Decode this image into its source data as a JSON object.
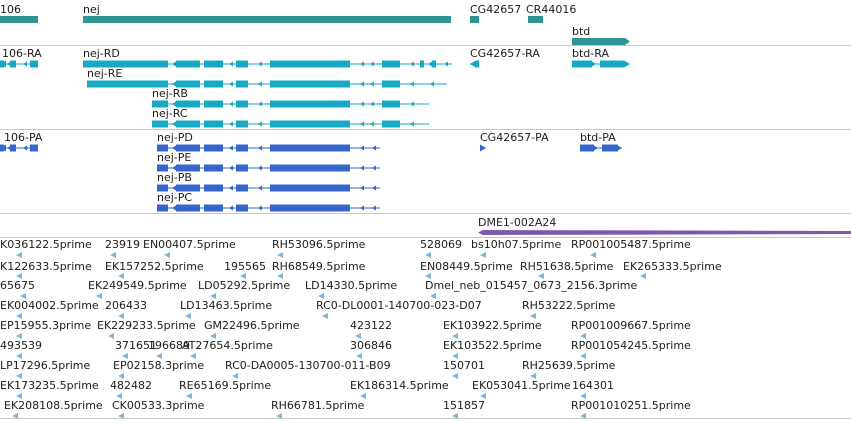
{
  "colors": {
    "gene": "#2e9494",
    "rna": "#17a8c4",
    "protein": "#3566cc",
    "bac": "#7f57b0",
    "est": "#7fb6d8",
    "separator": "#c8c8c8"
  },
  "tracks": {
    "gene_labels": [
      "106",
      "nej",
      "CG42657",
      "CR44016",
      "btd"
    ],
    "transcript_labels": [
      "106-RA",
      "nej-RD",
      "nej-RE",
      "nej-RB",
      "nej-RC",
      "CG42657-RA",
      "btd-RA"
    ],
    "protein_labels": [
      "106-PA",
      "nej-PD",
      "nej-PE",
      "nej-PB",
      "nej-PC",
      "CG42657-PA",
      "btd-PA"
    ],
    "bac_labels": [
      "DME1-002A24"
    ],
    "est_labels": [
      "K036122.5prime",
      "23919",
      "EN00407.5prime",
      "RH53096.5prime",
      "528069",
      "bs10h07.5prime",
      "RP001005487.5prime",
      "K122633.5prime",
      "EK157252.5prime",
      "195565",
      "RH68549.5prime",
      "EN08449.5prime",
      "RH51638.5prime",
      "EK265333.5prime",
      "65675",
      "EK249549.5prime",
      "LD05292.5prime",
      "LD14330.5prime",
      "Dmel_neb_015457_0673_2156.3prime",
      "EK004002.5prime",
      "206433",
      "LD13463.5prime",
      "RC0-DL0001-140700-023-D07",
      "RH53222.5prime",
      "EP15955.3prime",
      "EK229233.5prime",
      "GM22496.5prime",
      "423122",
      "EK103922.5prime",
      "RP001009667.5prime",
      "493539",
      "371651",
      "196689",
      "AT27654.5prime",
      "306846",
      "EK103522.5prime",
      "RP001054245.5prime",
      "LP17296.5prime",
      "EP02158.3prime",
      "RC0-DA0005-130700-011-B09",
      "150701",
      "RH25639.5prime",
      "EK173235.5prime",
      "482482",
      "RE65169.5prime",
      "EK186314.5prime",
      "EK053041.5prime",
      "164301",
      "EK208108.5prime",
      "CK00533.3prime",
      "RH66781.5prime",
      "151857",
      "RP001010251.5prime"
    ]
  }
}
